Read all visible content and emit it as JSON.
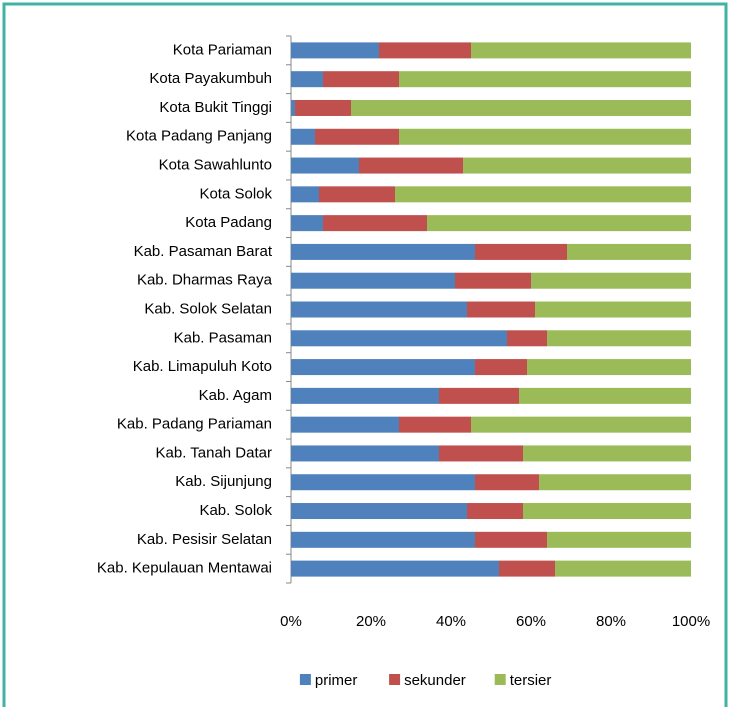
{
  "chart_data": {
    "type": "stacked_barh",
    "categories": [
      "Kota Pariaman",
      "Kota Payakumbuh",
      "Kota Bukit Tinggi",
      "Kota Padang Panjang",
      "Kota Sawahlunto",
      "Kota Solok",
      "Kota Padang",
      "Kab. Pasaman Barat",
      "Kab. Dharmas Raya",
      "Kab. Solok Selatan",
      "Kab. Pasaman",
      "Kab. Limapuluh Koto",
      "Kab. Agam",
      "Kab. Padang Pariaman",
      "Kab. Tanah Datar",
      "Kab. Sijunjung",
      "Kab. Solok",
      "Kab. Pesisir Selatan",
      "Kab. Kepulauan Mentawai"
    ],
    "series": [
      {
        "name": "primer",
        "color": "#4f81bd",
        "values": [
          22,
          8,
          1,
          6,
          17,
          7,
          8,
          46,
          41,
          44,
          54,
          46,
          37,
          27,
          37,
          46,
          44,
          46,
          52
        ]
      },
      {
        "name": "sekunder",
        "color": "#c0504d",
        "values": [
          23,
          19,
          14,
          21,
          26,
          19,
          26,
          23,
          19,
          17,
          10,
          13,
          20,
          18,
          21,
          16,
          14,
          18,
          14
        ]
      },
      {
        "name": "tersier",
        "color": "#9bbb59",
        "values": [
          55,
          73,
          85,
          73,
          57,
          74,
          66,
          31,
          40,
          39,
          36,
          41,
          43,
          55,
          42,
          38,
          42,
          36,
          34
        ]
      }
    ],
    "xlim": [
      0,
      100
    ],
    "xticks": [
      {
        "value": 0,
        "label": "0%"
      },
      {
        "value": 20,
        "label": "20%"
      },
      {
        "value": 40,
        "label": "40%"
      },
      {
        "value": 60,
        "label": "60%"
      },
      {
        "value": 80,
        "label": "80%"
      },
      {
        "value": 100,
        "label": "100%"
      }
    ],
    "legend": "bottom"
  }
}
